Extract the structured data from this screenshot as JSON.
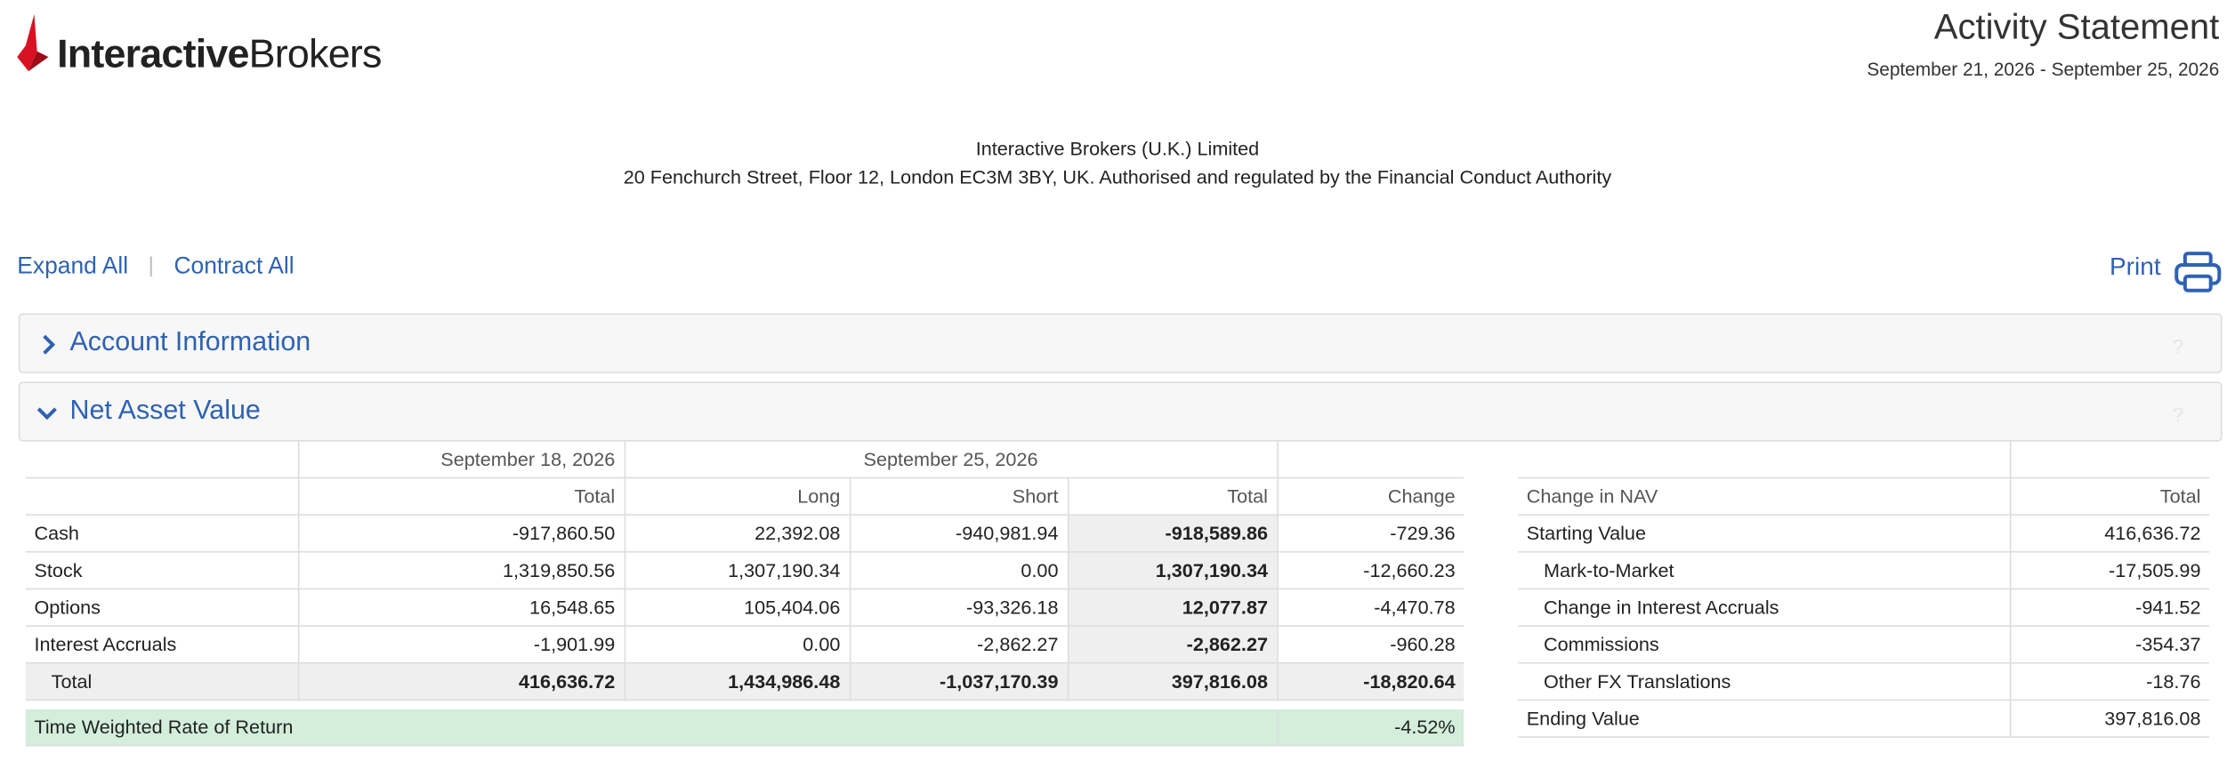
{
  "header": {
    "logo_bold": "Interactive",
    "logo_light": "Brokers",
    "title": "Activity Statement",
    "period": "September 21, 2026 - September 25, 2026",
    "company": "Interactive Brokers (U.K.) Limited",
    "address": "20 Fenchurch Street, Floor 12, London EC3M 3BY, UK. Authorised and regulated by the Financial Conduct Authority"
  },
  "toolbar": {
    "expand": "Expand All",
    "separator": "|",
    "contract": "Contract All",
    "print": "Print"
  },
  "sections": [
    {
      "title": "Account Information",
      "help": "?"
    },
    {
      "title": "Net Asset Value",
      "help": "?"
    }
  ],
  "nav_table": {
    "group_headers": [
      "September 18, 2026",
      "September 25, 2026"
    ],
    "columns": [
      "Total",
      "Long",
      "Short",
      "Total",
      "Change"
    ],
    "rows": [
      [
        "Cash",
        "-917,860.50",
        "22,392.08",
        "-940,981.94",
        "-918,589.86",
        "-729.36"
      ],
      [
        "Stock",
        "1,319,850.56",
        "1,307,190.34",
        "0.00",
        "1,307,190.34",
        "-12,660.23"
      ],
      [
        "Options",
        "16,548.65",
        "105,404.06",
        "-93,326.18",
        "12,077.87",
        "-4,470.78"
      ],
      [
        "Interest Accruals",
        "-1,901.99",
        "0.00",
        "-2,862.27",
        "-2,862.27",
        "-960.28"
      ]
    ],
    "total_row": [
      "Total",
      "416,636.72",
      "1,434,986.48",
      "-1,037,170.39",
      "397,816.08",
      "-18,820.64"
    ],
    "twr": {
      "label": "Time Weighted Rate of Return",
      "value": "-4.52%"
    }
  },
  "change_table": {
    "columns": [
      "Change in NAV",
      "Total"
    ],
    "rows": [
      [
        "Starting Value",
        "416,636.72"
      ],
      [
        "Mark-to-Market",
        "-17,505.99"
      ],
      [
        "Change in Interest Accruals",
        "-941.52"
      ],
      [
        "Commissions",
        "-354.37"
      ],
      [
        "Other FX Translations",
        "-18.76"
      ],
      [
        "Ending Value",
        "397,816.08"
      ]
    ]
  }
}
